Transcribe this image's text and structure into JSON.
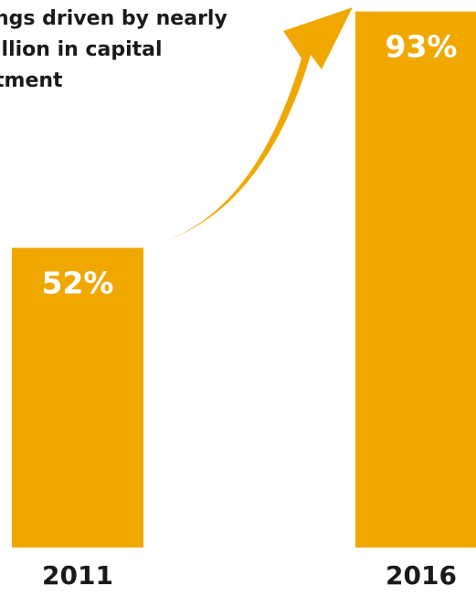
{
  "colors": {
    "bar": "#F0A800",
    "value_label": "#ffffff",
    "text": "#1a1a1a",
    "background": "#ffffff"
  },
  "annotation": {
    "lines": [
      "ngs driven by nearly",
      "illion in capital",
      "tment"
    ],
    "arrow_icon": "curved-arrow-up-right"
  },
  "chart_data": {
    "type": "bar",
    "categories": [
      "2011",
      "2016"
    ],
    "values": [
      52,
      93
    ],
    "value_labels": [
      "52%",
      "93%"
    ],
    "ylim": [
      0,
      100
    ],
    "grid": false,
    "title": "",
    "xlabel": "",
    "ylabel": ""
  }
}
